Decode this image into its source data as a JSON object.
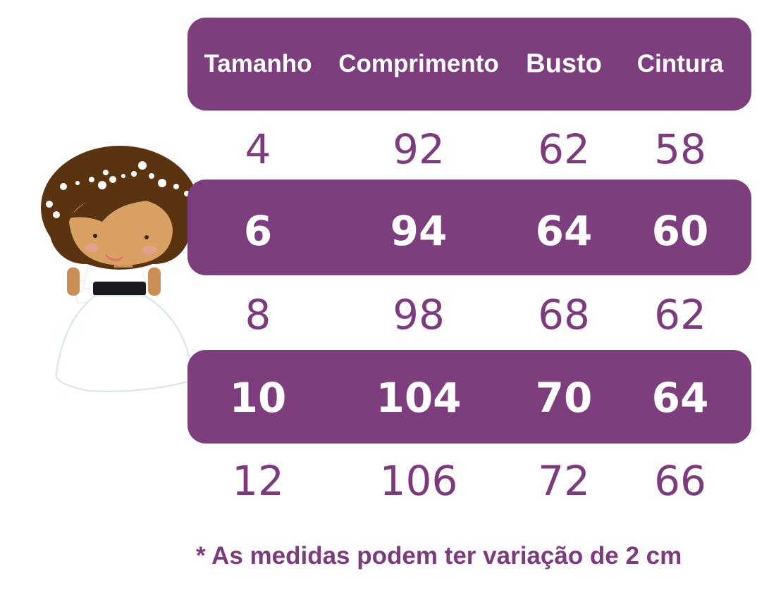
{
  "colors": {
    "brand_purple": "#7d3e7e",
    "text_purple": "#7b3b7c"
  },
  "illustration": "girl-in-white-dress-icon",
  "table": {
    "headers": [
      "Tamanho",
      "Comprimento",
      "Busto",
      "Cintura"
    ],
    "rows": [
      [
        "4",
        "92",
        "62",
        "58"
      ],
      [
        "6",
        "94",
        "64",
        "60"
      ],
      [
        "8",
        "98",
        "68",
        "62"
      ],
      [
        "10",
        "104",
        "70",
        "64"
      ],
      [
        "12",
        "106",
        "72",
        "66"
      ]
    ]
  },
  "footnote": "* As medidas podem ter variação de 2 cm"
}
